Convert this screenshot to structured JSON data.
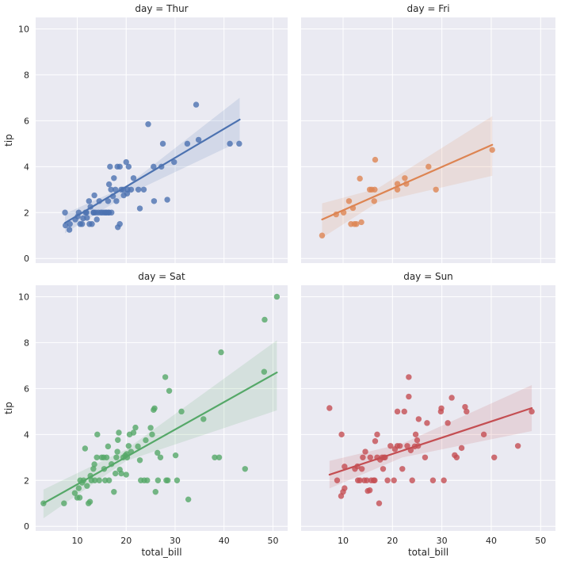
{
  "chart_data": {
    "type": "scatter",
    "title_format": "day = {day}",
    "xlabel": "total_bill",
    "ylabel": "tip",
    "xlim": [
      1.5,
      53
    ],
    "ylim": [
      -0.2,
      10.5
    ],
    "xticks": [
      10,
      20,
      30,
      40,
      50
    ],
    "yticks": [
      0,
      2,
      4,
      6,
      8,
      10
    ],
    "grid": true,
    "panels": [
      {
        "day": "Thur",
        "title": "day = Thur",
        "color": "#4c72b0",
        "reg_line": {
          "x": [
            7.5,
            43.2
          ],
          "y": [
            1.55,
            6.05
          ]
        },
        "ci_band": {
          "x": [
            7.5,
            20,
            43.2
          ],
          "y_low": [
            1.1,
            2.75,
            5.1
          ],
          "y_high": [
            1.95,
            3.15,
            7.0
          ]
        },
        "points": [
          [
            7.5,
            2.0
          ],
          [
            7.6,
            1.44
          ],
          [
            8.4,
            1.25
          ],
          [
            8.5,
            1.5
          ],
          [
            9.6,
            1.7
          ],
          [
            10.1,
            1.83
          ],
          [
            10.3,
            2.0
          ],
          [
            10.6,
            1.5
          ],
          [
            11.0,
            1.5
          ],
          [
            11.2,
            1.75
          ],
          [
            11.7,
            2.0
          ],
          [
            11.9,
            2.0
          ],
          [
            12.0,
            1.77
          ],
          [
            12.4,
            2.5
          ],
          [
            12.5,
            1.5
          ],
          [
            12.7,
            2.25
          ],
          [
            13.0,
            1.5
          ],
          [
            13.3,
            2.0
          ],
          [
            13.4,
            2.0
          ],
          [
            13.5,
            2.75
          ],
          [
            13.8,
            2.0
          ],
          [
            14.0,
            1.7
          ],
          [
            14.3,
            2.0
          ],
          [
            14.5,
            2.5
          ],
          [
            14.8,
            2.0
          ],
          [
            15.1,
            2.0
          ],
          [
            15.5,
            2.0
          ],
          [
            15.8,
            2.0
          ],
          [
            16.0,
            2.0
          ],
          [
            16.3,
            2.5
          ],
          [
            16.4,
            2.0
          ],
          [
            16.5,
            2.0
          ],
          [
            16.5,
            3.23
          ],
          [
            16.7,
            4.0
          ],
          [
            16.9,
            3.0
          ],
          [
            17.0,
            2.0
          ],
          [
            17.3,
            2.71
          ],
          [
            17.5,
            3.5
          ],
          [
            17.8,
            3.0
          ],
          [
            18.0,
            2.5
          ],
          [
            18.2,
            4.0
          ],
          [
            18.3,
            1.36
          ],
          [
            18.7,
            1.5
          ],
          [
            18.7,
            4.0
          ],
          [
            19.0,
            3.0
          ],
          [
            19.4,
            3.0
          ],
          [
            19.5,
            2.75
          ],
          [
            20.0,
            4.2
          ],
          [
            20.2,
            2.83
          ],
          [
            20.3,
            3.0
          ],
          [
            20.5,
            4.0
          ],
          [
            21.0,
            3.0
          ],
          [
            21.5,
            3.5
          ],
          [
            22.5,
            3.0
          ],
          [
            22.8,
            2.18
          ],
          [
            23.6,
            3.0
          ],
          [
            24.5,
            5.85
          ],
          [
            25.7,
            2.5
          ],
          [
            25.6,
            4.0
          ],
          [
            27.2,
            4.0
          ],
          [
            27.5,
            5.0
          ],
          [
            28.4,
            2.56
          ],
          [
            29.8,
            4.2
          ],
          [
            32.5,
            5.0
          ],
          [
            34.3,
            6.7
          ],
          [
            34.8,
            5.17
          ],
          [
            41.2,
            5.0
          ],
          [
            43.1,
            5.0
          ]
        ]
      },
      {
        "day": "Fri",
        "title": "day = Fri",
        "color": "#dd8452",
        "reg_line": {
          "x": [
            5.75,
            40.2
          ],
          "y": [
            1.7,
            4.95
          ]
        },
        "ci_band": {
          "x": [
            5.75,
            17,
            40.2
          ],
          "y_low": [
            0.9,
            2.45,
            3.6
          ],
          "y_high": [
            2.4,
            3.05,
            6.2
          ]
        },
        "points": [
          [
            5.75,
            1.0
          ],
          [
            8.6,
            1.92
          ],
          [
            10.1,
            2.0
          ],
          [
            11.2,
            2.5
          ],
          [
            11.6,
            1.5
          ],
          [
            12.0,
            2.2
          ],
          [
            12.3,
            1.5
          ],
          [
            12.7,
            1.5
          ],
          [
            13.4,
            3.48
          ],
          [
            13.7,
            1.58
          ],
          [
            15.4,
            3.0
          ],
          [
            15.8,
            3.0
          ],
          [
            16.3,
            2.5
          ],
          [
            16.4,
            3.0
          ],
          [
            16.5,
            4.3
          ],
          [
            21.0,
            3.0
          ],
          [
            21.0,
            3.25
          ],
          [
            22.5,
            3.5
          ],
          [
            22.8,
            3.25
          ],
          [
            27.3,
            4.0
          ],
          [
            28.8,
            3.0
          ],
          [
            40.2,
            4.73
          ]
        ]
      },
      {
        "day": "Sat",
        "title": "day = Sat",
        "color": "#55a868",
        "reg_line": {
          "x": [
            3.1,
            50.8
          ],
          "y": [
            1.0,
            6.7
          ]
        },
        "ci_band": {
          "x": [
            3.1,
            20,
            50.8
          ],
          "y_low": [
            0.35,
            2.85,
            5.05
          ],
          "y_high": [
            1.6,
            3.35,
            8.1
          ]
        },
        "points": [
          [
            3.1,
            1.0
          ],
          [
            7.3,
            1.0
          ],
          [
            9.5,
            1.45
          ],
          [
            10.0,
            1.25
          ],
          [
            10.3,
            1.66
          ],
          [
            10.5,
            1.25
          ],
          [
            10.6,
            2.0
          ],
          [
            11.0,
            1.9
          ],
          [
            11.3,
            2.0
          ],
          [
            11.6,
            3.39
          ],
          [
            12.0,
            1.76
          ],
          [
            12.3,
            1.0
          ],
          [
            12.6,
            1.07
          ],
          [
            12.7,
            2.2
          ],
          [
            12.9,
            2.0
          ],
          [
            13.3,
            2.5
          ],
          [
            13.5,
            2.7
          ],
          [
            13.6,
            2.0
          ],
          [
            14.0,
            3.0
          ],
          [
            14.1,
            4.0
          ],
          [
            14.5,
            2.0
          ],
          [
            15.0,
            3.0
          ],
          [
            15.4,
            3.0
          ],
          [
            15.5,
            2.5
          ],
          [
            15.7,
            2.0
          ],
          [
            16.0,
            3.0
          ],
          [
            16.3,
            3.48
          ],
          [
            16.5,
            2.0
          ],
          [
            17.0,
            2.71
          ],
          [
            17.5,
            1.5
          ],
          [
            17.8,
            2.3
          ],
          [
            18.0,
            3.0
          ],
          [
            18.2,
            3.25
          ],
          [
            18.3,
            3.76
          ],
          [
            18.5,
            4.08
          ],
          [
            18.7,
            2.47
          ],
          [
            19.0,
            2.3
          ],
          [
            19.4,
            3.0
          ],
          [
            19.8,
            3.08
          ],
          [
            20.0,
            2.25
          ],
          [
            20.1,
            3.15
          ],
          [
            20.2,
            3.0
          ],
          [
            20.5,
            3.5
          ],
          [
            20.7,
            4.0
          ],
          [
            21.0,
            3.25
          ],
          [
            21.5,
            4.08
          ],
          [
            21.9,
            4.3
          ],
          [
            22.4,
            3.48
          ],
          [
            22.8,
            2.88
          ],
          [
            23.0,
            2.0
          ],
          [
            23.7,
            2.0
          ],
          [
            24.0,
            3.75
          ],
          [
            24.3,
            2.0
          ],
          [
            25.0,
            4.29
          ],
          [
            25.3,
            4.0
          ],
          [
            25.6,
            5.07
          ],
          [
            25.8,
            5.14
          ],
          [
            26.0,
            1.5
          ],
          [
            26.4,
            3.2
          ],
          [
            26.5,
            2.0
          ],
          [
            27.0,
            3.0
          ],
          [
            28.0,
            6.5
          ],
          [
            28.2,
            2.0
          ],
          [
            28.5,
            2.0
          ],
          [
            28.8,
            5.9
          ],
          [
            30.4,
            2.0
          ],
          [
            30.1,
            3.09
          ],
          [
            31.3,
            5.0
          ],
          [
            32.7,
            1.17
          ],
          [
            35.8,
            4.67
          ],
          [
            38.1,
            3.0
          ],
          [
            39.0,
            3.0
          ],
          [
            39.4,
            7.58
          ],
          [
            44.3,
            2.5
          ],
          [
            48.2,
            6.73
          ],
          [
            48.3,
            9.0
          ],
          [
            50.8,
            10.0
          ]
        ]
      },
      {
        "day": "Sun",
        "title": "day = Sun",
        "color": "#c44e52",
        "reg_line": {
          "x": [
            7.25,
            48.2
          ],
          "y": [
            2.25,
            5.15
          ]
        },
        "ci_band": {
          "x": [
            7.25,
            22,
            48.2
          ],
          "y_low": [
            1.65,
            3.0,
            4.15
          ],
          "y_high": [
            2.85,
            3.6,
            6.15
          ]
        },
        "points": [
          [
            7.25,
            5.15
          ],
          [
            8.8,
            2.0
          ],
          [
            9.6,
            1.32
          ],
          [
            9.7,
            4.0
          ],
          [
            10.0,
            1.5
          ],
          [
            10.3,
            1.66
          ],
          [
            10.3,
            2.6
          ],
          [
            12.4,
            2.5
          ],
          [
            12.9,
            2.61
          ],
          [
            13.0,
            2.0
          ],
          [
            13.4,
            2.0
          ],
          [
            13.8,
            2.5
          ],
          [
            14.0,
            3.0
          ],
          [
            14.3,
            2.0
          ],
          [
            14.5,
            3.25
          ],
          [
            14.8,
            2.0
          ],
          [
            15.0,
            1.54
          ],
          [
            15.4,
            1.57
          ],
          [
            15.5,
            3.0
          ],
          [
            15.7,
            2.0
          ],
          [
            16.2,
            2.0
          ],
          [
            16.4,
            2.0
          ],
          [
            16.5,
            3.71
          ],
          [
            16.9,
            3.0
          ],
          [
            16.9,
            4.0
          ],
          [
            17.3,
            1.0
          ],
          [
            17.5,
            2.9
          ],
          [
            17.9,
            3.0
          ],
          [
            18.1,
            2.5
          ],
          [
            18.3,
            3.0
          ],
          [
            18.5,
            3.0
          ],
          [
            19.0,
            2.0
          ],
          [
            19.6,
            3.5
          ],
          [
            20.3,
            2.0
          ],
          [
            20.5,
            3.36
          ],
          [
            21.0,
            3.5
          ],
          [
            21.0,
            5.0
          ],
          [
            21.5,
            3.5
          ],
          [
            22.0,
            2.5
          ],
          [
            22.4,
            5.0
          ],
          [
            23.0,
            3.5
          ],
          [
            23.3,
            6.5
          ],
          [
            23.3,
            5.65
          ],
          [
            23.7,
            3.31
          ],
          [
            24.0,
            2.0
          ],
          [
            24.5,
            3.48
          ],
          [
            24.7,
            4.0
          ],
          [
            25.0,
            3.75
          ],
          [
            25.2,
            3.5
          ],
          [
            25.3,
            4.67
          ],
          [
            26.6,
            3.0
          ],
          [
            27.0,
            4.5
          ],
          [
            28.2,
            2.0
          ],
          [
            29.8,
            5.0
          ],
          [
            29.9,
            5.14
          ],
          [
            30.4,
            2.0
          ],
          [
            31.2,
            4.5
          ],
          [
            32.0,
            5.6
          ],
          [
            32.6,
            3.1
          ],
          [
            33.0,
            3.0
          ],
          [
            34.0,
            3.41
          ],
          [
            34.7,
            5.2
          ],
          [
            35.0,
            5.0
          ],
          [
            38.5,
            4.0
          ],
          [
            40.6,
            3.0
          ],
          [
            45.4,
            3.5
          ],
          [
            48.2,
            5.0
          ]
        ]
      }
    ]
  }
}
